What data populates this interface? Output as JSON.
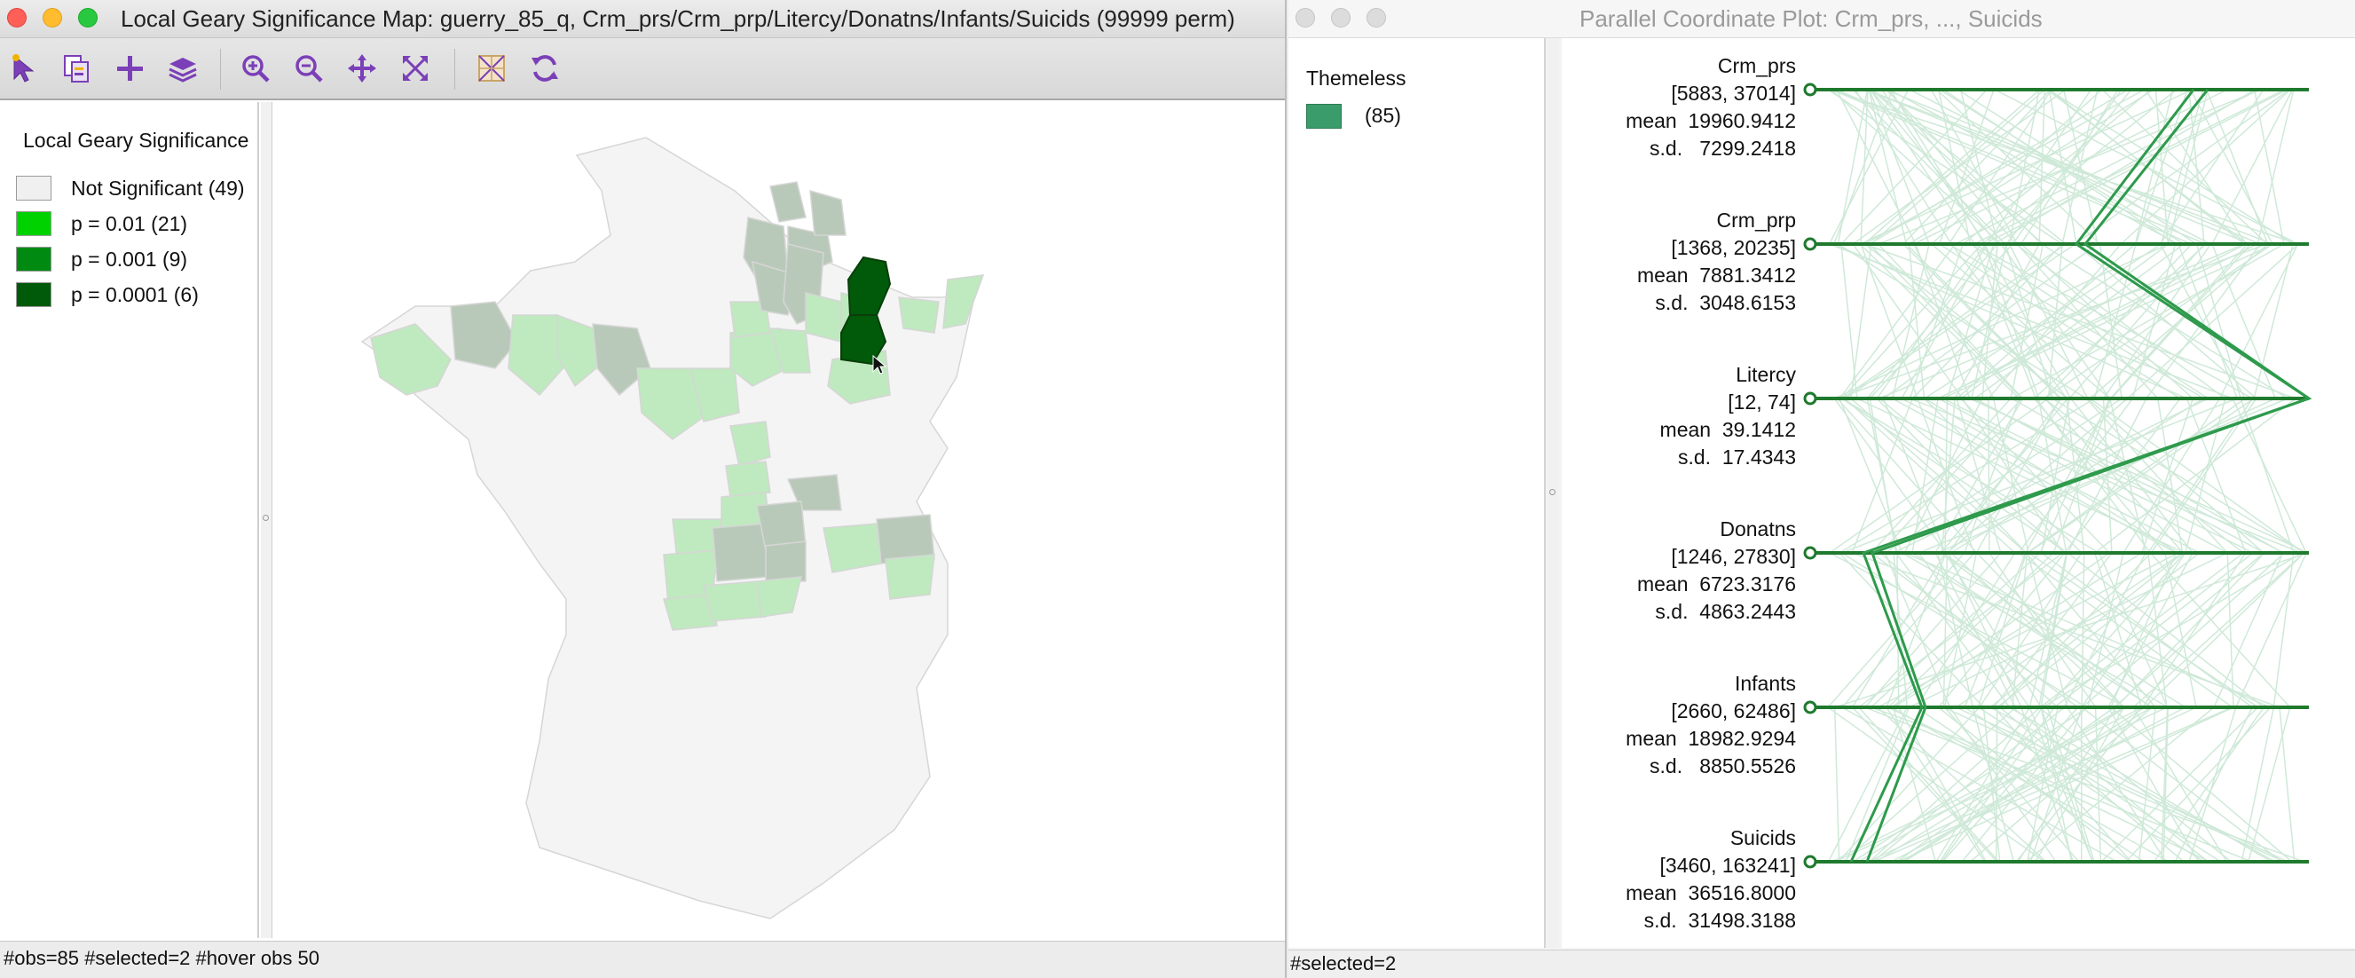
{
  "map_window": {
    "title": "Local Geary Significance Map: guerry_85_q, Crm_prs/Crm_prp/Litercy/Donatns/Infants/Suicids (99999 perm)",
    "toolbar": [
      "select-icon",
      "copy-selection-icon",
      "add-icon",
      "layers-icon",
      "zoom-in-icon",
      "zoom-out-icon",
      "pan-icon",
      "fit-extent-icon",
      "basemap-icon",
      "refresh-icon"
    ],
    "legend": {
      "title": "Local Geary Significance",
      "items": [
        {
          "label": "Not Significant (49)",
          "color": "#f0f0f0"
        },
        {
          "label": "p = 0.01 (21)",
          "color": "#00d200"
        },
        {
          "label": "p = 0.001 (9)",
          "color": "#008a12"
        },
        {
          "label": "p = 0.0001 (6)",
          "color": "#005a09"
        }
      ]
    },
    "status": "#obs=85 #selected=2  #hover obs 50"
  },
  "pcp_window": {
    "title": "Parallel Coordinate Plot: Crm_prs, ..., Suicids",
    "legend": {
      "category": "Themeless",
      "count": "(85)",
      "color": "#3a9c6a"
    },
    "axes": [
      {
        "name": "Crm_prs",
        "range": "[5883, 37014]",
        "mean": "mean  19960.9412",
        "sd": "s.d.   7299.2418"
      },
      {
        "name": "Crm_prp",
        "range": "[1368, 20235]",
        "mean": "mean  7881.3412",
        "sd": "s.d.  3048.6153"
      },
      {
        "name": "Litercy",
        "range": "[12, 74]",
        "mean": "mean  39.1412",
        "sd": "s.d.  17.4343"
      },
      {
        "name": "Donatns",
        "range": "[1246, 27830]",
        "mean": "mean  6723.3176",
        "sd": "s.d.  4863.2443"
      },
      {
        "name": "Infants",
        "range": "[2660, 62486]",
        "mean": "mean  18982.9294",
        "sd": "s.d.   8850.5526"
      },
      {
        "name": "Suicids",
        "range": "[3460, 163241]",
        "mean": "mean  36516.8000",
        "sd": "s.d.  31498.3188"
      }
    ],
    "status": "#selected=2"
  }
}
